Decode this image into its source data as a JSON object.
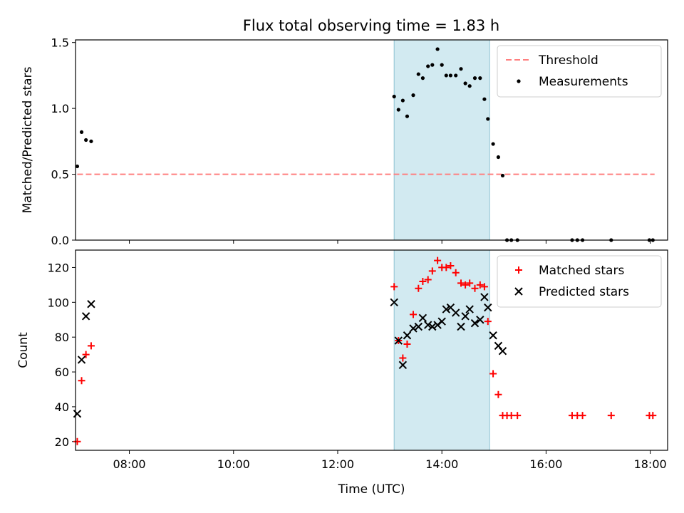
{
  "title": "Flux total observing time = 1.83 h",
  "shade_color": "#add8e6",
  "chart_data": [
    {
      "type": "scatter",
      "ylabel": "Matched/Predicted stars",
      "ylim": [
        0,
        1.52
      ],
      "yticks": [
        "0.0",
        "0.5",
        "1.0",
        "1.5"
      ],
      "ytick_values": [
        0,
        0.5,
        1.0,
        1.5
      ],
      "xlim": [
        "06:58",
        "18:20"
      ],
      "shaded_interval": [
        "13:05",
        "14:55"
      ],
      "legend_position": "top-right",
      "threshold": {
        "name": "Threshold",
        "value": 0.5,
        "x_range": [
          "07:00",
          "18:05"
        ],
        "color": "#ff7f7f"
      },
      "series": [
        {
          "name": "Measurements",
          "marker": "dot",
          "color": "#000000",
          "points": [
            [
              "07:00",
              0.56
            ],
            [
              "07:05",
              0.82
            ],
            [
              "07:10",
              0.76
            ],
            [
              "07:16",
              0.75
            ],
            [
              "13:05",
              1.09
            ],
            [
              "13:10",
              0.99
            ],
            [
              "13:15",
              1.06
            ],
            [
              "13:20",
              0.94
            ],
            [
              "13:27",
              1.1
            ],
            [
              "13:33",
              1.26
            ],
            [
              "13:38",
              1.23
            ],
            [
              "13:44",
              1.32
            ],
            [
              "13:49",
              1.33
            ],
            [
              "13:55",
              1.45
            ],
            [
              "14:00",
              1.33
            ],
            [
              "14:05",
              1.25
            ],
            [
              "14:10",
              1.25
            ],
            [
              "14:16",
              1.25
            ],
            [
              "14:22",
              1.3
            ],
            [
              "14:27",
              1.19
            ],
            [
              "14:32",
              1.17
            ],
            [
              "14:38",
              1.23
            ],
            [
              "14:44",
              1.23
            ],
            [
              "14:49",
              1.07
            ],
            [
              "14:53",
              0.92
            ],
            [
              "14:59",
              0.73
            ],
            [
              "15:05",
              0.63
            ],
            [
              "15:10",
              0.49
            ],
            [
              "15:15",
              0.0
            ],
            [
              "15:20",
              0.0
            ],
            [
              "15:27",
              0.0
            ],
            [
              "16:30",
              0.0
            ],
            [
              "16:36",
              0.0
            ],
            [
              "16:42",
              0.0
            ],
            [
              "17:15",
              0.0
            ],
            [
              "17:59",
              0.0
            ],
            [
              "18:03",
              0.0
            ]
          ]
        }
      ]
    },
    {
      "type": "scatter",
      "ylabel": "Count",
      "xlabel": "Time (UTC)",
      "ylim": [
        15,
        130
      ],
      "yticks": [
        "20",
        "40",
        "60",
        "80",
        "100",
        "120"
      ],
      "ytick_values": [
        20,
        40,
        60,
        80,
        100,
        120
      ],
      "xlim": [
        "06:58",
        "18:20"
      ],
      "xticks": [
        "08:00",
        "10:00",
        "12:00",
        "14:00",
        "16:00",
        "18:00"
      ],
      "shaded_interval": [
        "13:05",
        "14:55"
      ],
      "legend_position": "top-right",
      "series": [
        {
          "name": "Matched stars",
          "marker": "plus",
          "color": "#ff0000",
          "points": [
            [
              "07:00",
              20
            ],
            [
              "07:05",
              55
            ],
            [
              "07:10",
              70
            ],
            [
              "07:16",
              75
            ],
            [
              "13:05",
              109
            ],
            [
              "13:10",
              78
            ],
            [
              "13:15",
              68
            ],
            [
              "13:20",
              76
            ],
            [
              "13:27",
              93
            ],
            [
              "13:33",
              108
            ],
            [
              "13:38",
              112
            ],
            [
              "13:44",
              113
            ],
            [
              "13:49",
              118
            ],
            [
              "13:55",
              124
            ],
            [
              "14:00",
              120
            ],
            [
              "14:05",
              120
            ],
            [
              "14:10",
              121
            ],
            [
              "14:16",
              117
            ],
            [
              "14:22",
              111
            ],
            [
              "14:27",
              110
            ],
            [
              "14:32",
              111
            ],
            [
              "14:38",
              108
            ],
            [
              "14:44",
              110
            ],
            [
              "14:49",
              109
            ],
            [
              "14:53",
              89
            ],
            [
              "14:59",
              59
            ],
            [
              "15:05",
              47
            ],
            [
              "15:10",
              35
            ],
            [
              "15:15",
              35
            ],
            [
              "15:20",
              35
            ],
            [
              "15:27",
              35
            ],
            [
              "16:30",
              35
            ],
            [
              "16:36",
              35
            ],
            [
              "16:42",
              35
            ],
            [
              "17:15",
              35
            ],
            [
              "17:59",
              35
            ],
            [
              "18:03",
              35
            ]
          ]
        },
        {
          "name": "Predicted stars",
          "marker": "x",
          "color": "#000000",
          "points": [
            [
              "07:00",
              36
            ],
            [
              "07:05",
              67
            ],
            [
              "07:10",
              92
            ],
            [
              "07:16",
              99
            ],
            [
              "13:05",
              100
            ],
            [
              "13:10",
              78
            ],
            [
              "13:15",
              64
            ],
            [
              "13:20",
              81
            ],
            [
              "13:27",
              85
            ],
            [
              "13:33",
              86
            ],
            [
              "13:38",
              91
            ],
            [
              "13:44",
              87
            ],
            [
              "13:49",
              86
            ],
            [
              "13:55",
              87
            ],
            [
              "14:00",
              89
            ],
            [
              "14:05",
              96
            ],
            [
              "14:10",
              97
            ],
            [
              "14:16",
              94
            ],
            [
              "14:22",
              86
            ],
            [
              "14:27",
              92
            ],
            [
              "14:32",
              96
            ],
            [
              "14:38",
              88
            ],
            [
              "14:44",
              90
            ],
            [
              "14:49",
              103
            ],
            [
              "14:53",
              97
            ],
            [
              "14:59",
              81
            ],
            [
              "15:05",
              75
            ],
            [
              "15:10",
              72
            ]
          ]
        }
      ]
    }
  ]
}
